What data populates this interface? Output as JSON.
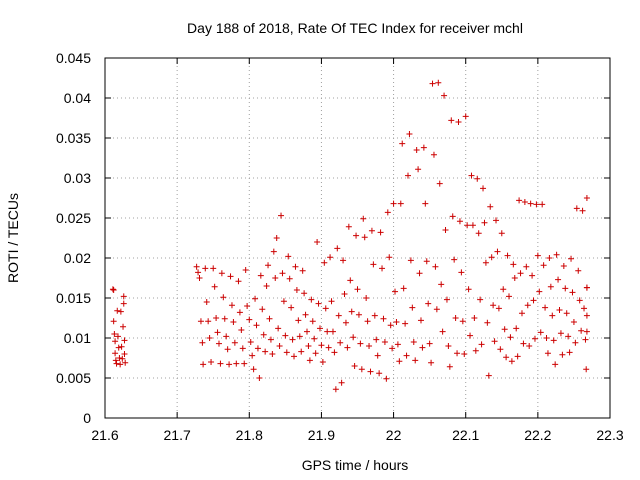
{
  "chart_data": {
    "type": "scatter",
    "title": "Day 188 of 2018, Rate Of TEC Index for receiver mchl",
    "xlabel": "GPS time / hours",
    "ylabel": "ROTI / TECUs",
    "xlim": [
      21.6,
      22.3
    ],
    "ylim": [
      0,
      0.045
    ],
    "grid": true,
    "x_tick_labels": [
      "21.6",
      "21.7",
      "21.8",
      "21.9",
      "22",
      "22.1",
      "22.2",
      "22.3"
    ],
    "y_tick_labels": [
      "0",
      "0.005",
      "0.01",
      "0.015",
      "0.02",
      "0.025",
      "0.03",
      "0.035",
      "0.04",
      "0.045"
    ],
    "marker": "+",
    "marker_color": "#cc0000",
    "series": [
      {
        "name": "ROTI",
        "points": [
          [
            21.611,
            0.0161
          ],
          [
            21.612,
            0.016
          ],
          [
            21.612,
            0.0121
          ],
          [
            21.613,
            0.0105
          ],
          [
            21.614,
            0.0096
          ],
          [
            21.614,
            0.0081
          ],
          [
            21.615,
            0.0072
          ],
          [
            21.616,
            0.0068
          ],
          [
            21.617,
            0.0134
          ],
          [
            21.618,
            0.0102
          ],
          [
            21.619,
            0.0088
          ],
          [
            21.62,
            0.0075
          ],
          [
            21.621,
            0.0067
          ],
          [
            21.622,
            0.0133
          ],
          [
            21.623,
            0.0089
          ],
          [
            21.624,
            0.0074
          ],
          [
            21.625,
            0.0114
          ],
          [
            21.626,
            0.0152
          ],
          [
            21.626,
            0.0143
          ],
          [
            21.627,
            0.0097
          ],
          [
            21.627,
            0.008
          ],
          [
            21.628,
            0.0069
          ],
          [
            21.727,
            0.0189
          ],
          [
            21.729,
            0.0182
          ],
          [
            21.731,
            0.0175
          ],
          [
            21.733,
            0.0121
          ],
          [
            21.735,
            0.0094
          ],
          [
            21.736,
            0.0067
          ],
          [
            21.739,
            0.0187
          ],
          [
            21.741,
            0.0145
          ],
          [
            21.743,
            0.0121
          ],
          [
            21.745,
            0.01
          ],
          [
            21.747,
            0.007
          ],
          [
            21.75,
            0.0187
          ],
          [
            21.752,
            0.0164
          ],
          [
            21.754,
            0.0125
          ],
          [
            21.756,
            0.0107
          ],
          [
            21.758,
            0.0093
          ],
          [
            21.76,
            0.0068
          ],
          [
            21.762,
            0.0181
          ],
          [
            21.764,
            0.0151
          ],
          [
            21.766,
            0.0124
          ],
          [
            21.768,
            0.0102
          ],
          [
            21.77,
            0.0086
          ],
          [
            21.772,
            0.0067
          ],
          [
            21.774,
            0.0177
          ],
          [
            21.776,
            0.0141
          ],
          [
            21.778,
            0.012
          ],
          [
            21.78,
            0.0094
          ],
          [
            21.782,
            0.0068
          ],
          [
            21.785,
            0.0171
          ],
          [
            21.787,
            0.0132
          ],
          [
            21.789,
            0.011
          ],
          [
            21.791,
            0.0087
          ],
          [
            21.793,
            0.0068
          ],
          [
            21.795,
            0.0185
          ],
          [
            21.797,
            0.014
          ],
          [
            21.8,
            0.0123
          ],
          [
            21.802,
            0.0095
          ],
          [
            21.804,
            0.0078
          ],
          [
            21.806,
            0.0061
          ],
          [
            21.808,
            0.0149
          ],
          [
            21.81,
            0.0116
          ],
          [
            21.812,
            0.0087
          ],
          [
            21.814,
            0.005
          ],
          [
            21.816,
            0.0178
          ],
          [
            21.818,
            0.0136
          ],
          [
            21.82,
            0.0104
          ],
          [
            21.822,
            0.0083
          ],
          [
            21.824,
            0.0165
          ],
          [
            21.826,
            0.0191
          ],
          [
            21.828,
            0.0124
          ],
          [
            21.83,
            0.0098
          ],
          [
            21.832,
            0.008
          ],
          [
            21.834,
            0.0208
          ],
          [
            21.836,
            0.0175
          ],
          [
            21.838,
            0.0225
          ],
          [
            21.84,
            0.0112
          ],
          [
            21.842,
            0.009
          ],
          [
            21.844,
            0.0253
          ],
          [
            21.846,
            0.0181
          ],
          [
            21.848,
            0.0146
          ],
          [
            21.85,
            0.0103
          ],
          [
            21.852,
            0.0082
          ],
          [
            21.854,
            0.0202
          ],
          [
            21.856,
            0.0174
          ],
          [
            21.858,
            0.0138
          ],
          [
            21.86,
            0.0098
          ],
          [
            21.862,
            0.0077
          ],
          [
            21.864,
            0.0189
          ],
          [
            21.866,
            0.016
          ],
          [
            21.868,
            0.0122
          ],
          [
            21.87,
            0.0102
          ],
          [
            21.872,
            0.0083
          ],
          [
            21.874,
            0.0184
          ],
          [
            21.876,
            0.0156
          ],
          [
            21.878,
            0.0129
          ],
          [
            21.88,
            0.0108
          ],
          [
            21.882,
            0.009
          ],
          [
            21.884,
            0.0072
          ],
          [
            21.886,
            0.0148
          ],
          [
            21.888,
            0.0121
          ],
          [
            21.89,
            0.0099
          ],
          [
            21.892,
            0.0081
          ],
          [
            21.894,
            0.022
          ],
          [
            21.896,
            0.0143
          ],
          [
            21.898,
            0.0112
          ],
          [
            21.9,
            0.0091
          ],
          [
            21.902,
            0.007
          ],
          [
            21.904,
            0.0194
          ],
          [
            21.906,
            0.0137
          ],
          [
            21.908,
            0.0108
          ],
          [
            21.91,
            0.0088
          ],
          [
            21.912,
            0.0201
          ],
          [
            21.914,
            0.0146
          ],
          [
            21.916,
            0.0108
          ],
          [
            21.918,
            0.0082
          ],
          [
            21.92,
            0.0036
          ],
          [
            21.922,
            0.0212
          ],
          [
            21.924,
            0.0128
          ],
          [
            21.926,
            0.0094
          ],
          [
            21.928,
            0.0044
          ],
          [
            21.93,
            0.0197
          ],
          [
            21.932,
            0.0155
          ],
          [
            21.934,
            0.0119
          ],
          [
            21.936,
            0.0088
          ],
          [
            21.938,
            0.0239
          ],
          [
            21.94,
            0.0172
          ],
          [
            21.942,
            0.0133
          ],
          [
            21.944,
            0.0101
          ],
          [
            21.946,
            0.0065
          ],
          [
            21.948,
            0.0228
          ],
          [
            21.95,
            0.0161
          ],
          [
            21.952,
            0.0129
          ],
          [
            21.954,
            0.0093
          ],
          [
            21.956,
            0.0061
          ],
          [
            21.958,
            0.0249
          ],
          [
            21.96,
            0.0226
          ],
          [
            21.962,
            0.015
          ],
          [
            21.964,
            0.0121
          ],
          [
            21.966,
            0.009
          ],
          [
            21.968,
            0.0058
          ],
          [
            21.97,
            0.0234
          ],
          [
            21.972,
            0.0192
          ],
          [
            21.974,
            0.0128
          ],
          [
            21.976,
            0.0098
          ],
          [
            21.978,
            0.0078
          ],
          [
            21.98,
            0.0056
          ],
          [
            21.982,
            0.0232
          ],
          [
            21.984,
            0.0187
          ],
          [
            21.986,
            0.0124
          ],
          [
            21.988,
            0.0095
          ],
          [
            21.99,
            0.0049
          ],
          [
            21.992,
            0.0257
          ],
          [
            21.994,
            0.0201
          ],
          [
            21.996,
            0.0116
          ],
          [
            21.998,
            0.0087
          ],
          [
            22.0,
            0.0268
          ],
          [
            22.002,
            0.0158
          ],
          [
            22.004,
            0.012
          ],
          [
            22.006,
            0.0092
          ],
          [
            22.008,
            0.0071
          ],
          [
            22.01,
            0.0268
          ],
          [
            22.012,
            0.0343
          ],
          [
            22.014,
            0.0162
          ],
          [
            22.016,
            0.0118
          ],
          [
            22.018,
            0.0078
          ],
          [
            22.02,
            0.0303
          ],
          [
            22.022,
            0.0355
          ],
          [
            22.024,
            0.0197
          ],
          [
            22.026,
            0.0138
          ],
          [
            22.028,
            0.0095
          ],
          [
            22.03,
            0.0072
          ],
          [
            22.032,
            0.0335
          ],
          [
            22.034,
            0.0311
          ],
          [
            22.036,
            0.0181
          ],
          [
            22.038,
            0.0122
          ],
          [
            22.04,
            0.0088
          ],
          [
            22.042,
            0.0338
          ],
          [
            22.044,
            0.0268
          ],
          [
            22.046,
            0.0196
          ],
          [
            22.048,
            0.0143
          ],
          [
            22.05,
            0.0093
          ],
          [
            22.052,
            0.0069
          ],
          [
            22.054,
            0.0418
          ],
          [
            22.056,
            0.0329
          ],
          [
            22.058,
            0.0189
          ],
          [
            22.06,
            0.0136
          ],
          [
            22.062,
            0.0419
          ],
          [
            22.064,
            0.0293
          ],
          [
            22.066,
            0.0167
          ],
          [
            22.068,
            0.0108
          ],
          [
            22.07,
            0.0403
          ],
          [
            22.072,
            0.0235
          ],
          [
            22.074,
            0.0148
          ],
          [
            22.076,
            0.009
          ],
          [
            22.078,
            0.0064
          ],
          [
            22.08,
            0.0372
          ],
          [
            22.082,
            0.0252
          ],
          [
            22.084,
            0.0198
          ],
          [
            22.086,
            0.0125
          ],
          [
            22.088,
            0.0081
          ],
          [
            22.09,
            0.037
          ],
          [
            22.092,
            0.0246
          ],
          [
            22.094,
            0.0182
          ],
          [
            22.096,
            0.0121
          ],
          [
            22.098,
            0.008
          ],
          [
            22.1,
            0.0377
          ],
          [
            22.102,
            0.0241
          ],
          [
            22.104,
            0.0161
          ],
          [
            22.106,
            0.0103
          ],
          [
            22.108,
            0.0303
          ],
          [
            22.11,
            0.0241
          ],
          [
            22.112,
            0.0125
          ],
          [
            22.114,
            0.0084
          ],
          [
            22.116,
            0.0299
          ],
          [
            22.118,
            0.0231
          ],
          [
            22.12,
            0.0148
          ],
          [
            22.122,
            0.0092
          ],
          [
            22.124,
            0.0287
          ],
          [
            22.126,
            0.0244
          ],
          [
            22.128,
            0.0194
          ],
          [
            22.13,
            0.0119
          ],
          [
            22.132,
            0.0053
          ],
          [
            22.134,
            0.0264
          ],
          [
            22.136,
            0.0201
          ],
          [
            22.138,
            0.0141
          ],
          [
            22.14,
            0.0096
          ],
          [
            22.142,
            0.0247
          ],
          [
            22.144,
            0.0208
          ],
          [
            22.146,
            0.0137
          ],
          [
            22.148,
            0.0086
          ],
          [
            22.15,
            0.0231
          ],
          [
            22.152,
            0.0161
          ],
          [
            22.154,
            0.0111
          ],
          [
            22.156,
            0.0076
          ],
          [
            22.158,
            0.0203
          ],
          [
            22.16,
            0.0152
          ],
          [
            22.162,
            0.0101
          ],
          [
            22.164,
            0.0071
          ],
          [
            22.166,
            0.0192
          ],
          [
            22.168,
            0.0175
          ],
          [
            22.17,
            0.0112
          ],
          [
            22.172,
            0.0077
          ],
          [
            22.174,
            0.0272
          ],
          [
            22.176,
            0.0181
          ],
          [
            22.178,
            0.0131
          ],
          [
            22.18,
            0.0093
          ],
          [
            22.182,
            0.027
          ],
          [
            22.184,
            0.0189
          ],
          [
            22.186,
            0.0141
          ],
          [
            22.188,
            0.009
          ],
          [
            22.19,
            0.0268
          ],
          [
            22.192,
            0.0178
          ],
          [
            22.194,
            0.0147
          ],
          [
            22.196,
            0.0099
          ],
          [
            22.198,
            0.0267
          ],
          [
            22.2,
            0.0203
          ],
          [
            22.202,
            0.0158
          ],
          [
            22.204,
            0.0107
          ],
          [
            22.206,
            0.0267
          ],
          [
            22.208,
            0.0191
          ],
          [
            22.21,
            0.0138
          ],
          [
            22.212,
            0.01
          ],
          [
            22.214,
            0.0081
          ],
          [
            22.216,
            0.02
          ],
          [
            22.218,
            0.0164
          ],
          [
            22.22,
            0.0128
          ],
          [
            22.222,
            0.0097
          ],
          [
            22.224,
            0.0067
          ],
          [
            22.226,
            0.0204
          ],
          [
            22.228,
            0.0173
          ],
          [
            22.23,
            0.0135
          ],
          [
            22.232,
            0.0106
          ],
          [
            22.234,
            0.0079
          ],
          [
            22.236,
            0.019
          ],
          [
            22.238,
            0.0162
          ],
          [
            22.24,
            0.0131
          ],
          [
            22.242,
            0.0102
          ],
          [
            22.244,
            0.0082
          ],
          [
            22.246,
            0.0199
          ],
          [
            22.248,
            0.0157
          ],
          [
            22.25,
            0.012
          ],
          [
            22.252,
            0.0094
          ],
          [
            22.254,
            0.0262
          ],
          [
            22.256,
            0.0184
          ],
          [
            22.258,
            0.0147
          ],
          [
            22.26,
            0.0109
          ],
          [
            22.262,
            0.0259
          ],
          [
            22.264,
            0.0137
          ],
          [
            22.266,
            0.0098
          ],
          [
            22.267,
            0.0061
          ],
          [
            22.268,
            0.0275
          ],
          [
            22.268,
            0.0163
          ],
          [
            22.268,
            0.0128
          ],
          [
            22.268,
            0.0108
          ],
          [
            22.268,
            0.0163
          ]
        ]
      }
    ]
  }
}
